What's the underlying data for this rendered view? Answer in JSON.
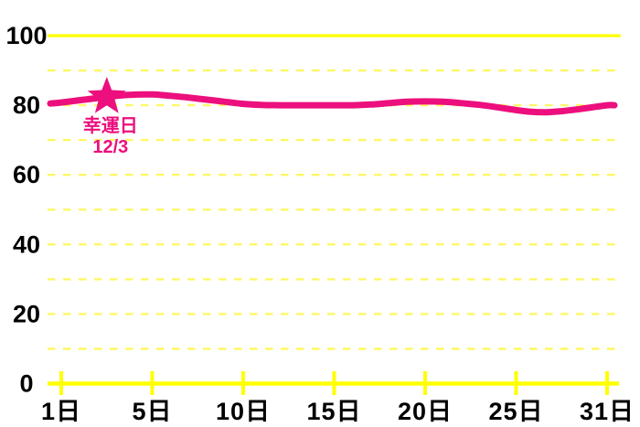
{
  "page": {
    "background": "#ffffff"
  },
  "chart_data": {
    "type": "line",
    "title": "",
    "xlabel": "",
    "ylabel": "",
    "legend": "none",
    "grid": "horizontal dashed lines every 10 units; solid lines at 100 and at 0 (x-axis)",
    "ylim": [
      0,
      100
    ],
    "y_ticks": [
      100,
      80,
      60,
      40,
      20,
      0
    ],
    "x_tick_days": [
      1,
      5,
      10,
      15,
      20,
      25,
      31
    ],
    "x_tick_labels": [
      "1日",
      "5日",
      "10日",
      "15日",
      "20日",
      "25日",
      "31日"
    ],
    "days": [
      1,
      2,
      3,
      4,
      5,
      6,
      7,
      8,
      9,
      10,
      11,
      12,
      13,
      14,
      15,
      16,
      17,
      18,
      19,
      20,
      21,
      22,
      23,
      24,
      25,
      26,
      27,
      28,
      29,
      30,
      31
    ],
    "values": [
      80.8,
      81.6,
      82.4,
      83,
      83.1,
      82.7,
      82.2,
      81.6,
      81,
      80.4,
      80.1,
      80,
      80,
      80,
      80,
      80,
      80.2,
      80.6,
      81,
      81.1,
      81,
      80.6,
      80.1,
      79.4,
      78.6,
      78.1,
      78,
      78.3,
      78.8,
      79.4,
      80
    ],
    "annotation": {
      "label": "幸運日",
      "date": "12/3",
      "day": 3,
      "marker": "star-icon"
    },
    "colors": {
      "line": "#ec0f7d",
      "axis_yellow": "#ffff00",
      "grid_dashed_yellow": "#fff763",
      "tick_label_text": "#000000",
      "annotation_text": "#ec0f7d"
    }
  }
}
